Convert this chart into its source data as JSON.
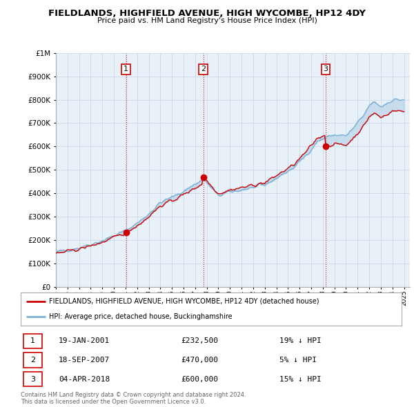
{
  "title": "FIELDLANDS, HIGHFIELD AVENUE, HIGH WYCOMBE, HP12 4DY",
  "subtitle": "Price paid vs. HM Land Registry's House Price Index (HPI)",
  "legend_line1": "FIELDLANDS, HIGHFIELD AVENUE, HIGH WYCOMBE, HP12 4DY (detached house)",
  "legend_line2": "HPI: Average price, detached house, Buckinghamshire",
  "transactions": [
    {
      "label": "1",
      "date": "19-JAN-2001",
      "year": 2001.05,
      "price": 232500,
      "pct": "19%",
      "dir": "↓"
    },
    {
      "label": "2",
      "date": "18-SEP-2007",
      "year": 2007.71,
      "price": 470000,
      "pct": "5%",
      "dir": "↓"
    },
    {
      "label": "3",
      "date": "04-APR-2018",
      "year": 2018.25,
      "price": 600000,
      "pct": "15%",
      "dir": "↓"
    }
  ],
  "footnote1": "Contains HM Land Registry data © Crown copyright and database right 2024.",
  "footnote2": "This data is licensed under the Open Government Licence v3.0.",
  "red_color": "#cc0000",
  "blue_color": "#7bafd4",
  "fill_color": "#ddeeff",
  "chart_bg": "#e8f0f8",
  "background_color": "#ffffff",
  "grid_color": "#c8d8e8",
  "ylim": [
    0,
    1000000
  ],
  "xlim_start": 1995.0,
  "xlim_end": 2025.5
}
